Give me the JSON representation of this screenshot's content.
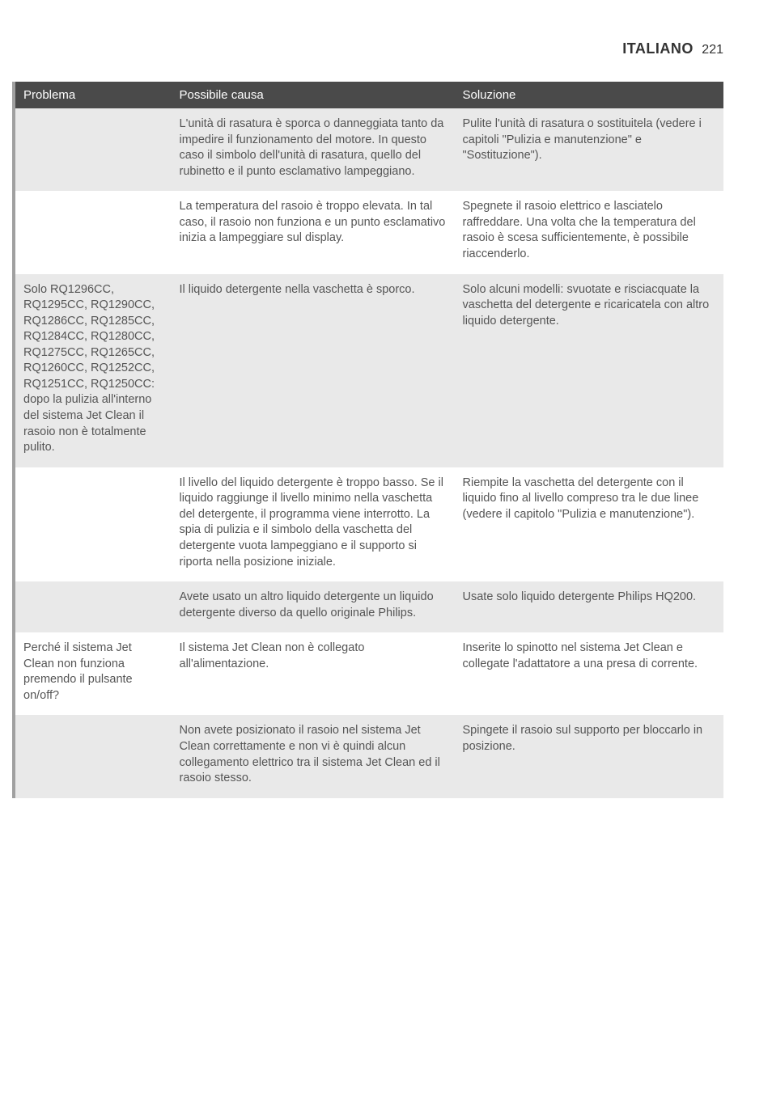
{
  "header": {
    "language": "ITALIANO",
    "page_number": "221"
  },
  "table": {
    "header_bg": "#4a4a4a",
    "header_fg": "#ffffff",
    "odd_row_bg": "#e9e9e9",
    "even_row_bg": "#ffffff",
    "left_border_color": "#a0a0a0",
    "columns": [
      "Problema",
      "Possibile causa",
      "Soluzione"
    ],
    "rows": [
      {
        "problema": "",
        "causa": "L'unità di rasatura è sporca o danneggiata tanto da impedire il funzionamento del motore. In questo caso il simbolo dell'unità di rasatura, quello del rubinetto e il punto esclamativo lampeggiano.",
        "soluzione": "Pulite l'unità di rasatura o sostituitela (vedere i capitoli \"Pulizia e manutenzione\" e \"Sostituzione\")."
      },
      {
        "problema": "",
        "causa": "La temperatura del rasoio è troppo elevata. In tal caso, il rasoio non funziona e un punto esclamativo inizia a lampeggiare sul display.",
        "soluzione": "Spegnete il rasoio elettrico e lasciatelo raffreddare. Una volta che la temperatura del rasoio è scesa sufficientemente, è possibile riaccenderlo."
      },
      {
        "problema": "Solo RQ1296CC, RQ1295CC, RQ1290CC, RQ1286CC, RQ1285CC, RQ1284CC, RQ1280CC, RQ1275CC, RQ1265CC, RQ1260CC, RQ1252CC, RQ1251CC, RQ1250CC: dopo la pulizia all'interno del sistema Jet Clean il rasoio non è totalmente pulito.",
        "causa": "Il liquido detergente nella vaschetta è sporco.",
        "soluzione": "Solo alcuni modelli: svuotate e risciacquate la vaschetta del detergente e ricaricatela con altro liquido detergente."
      },
      {
        "problema": "",
        "causa": "Il livello del liquido detergente è troppo basso. Se il liquido raggiunge il livello minimo nella vaschetta del detergente, il programma viene interrotto. La spia di pulizia e il simbolo della vaschetta del detergente vuota lampeggiano e il supporto si riporta nella posizione iniziale.",
        "soluzione": "Riempite la vaschetta del detergente con il liquido fino al livello compreso tra le due linee (vedere il capitolo \"Pulizia e manutenzione\")."
      },
      {
        "problema": "",
        "causa": "Avete usato un altro liquido detergente un liquido detergente diverso da quello originale Philips.",
        "soluzione": "Usate solo liquido detergente Philips HQ200."
      },
      {
        "problema": "Perché il sistema Jet Clean non funziona premendo il pulsante on/off?",
        "causa": "Il sistema Jet Clean non è collegato all'alimentazione.",
        "soluzione": "Inserite lo spinotto nel sistema Jet Clean e collegate l'adattatore a una presa di corrente."
      },
      {
        "problema": "",
        "causa": "Non avete posizionato il rasoio nel sistema Jet Clean correttamente e non vi è quindi alcun collegamento elettrico tra il sistema Jet Clean ed il rasoio stesso.",
        "soluzione": "Spingete il rasoio sul supporto per bloccarlo in posizione."
      }
    ]
  }
}
